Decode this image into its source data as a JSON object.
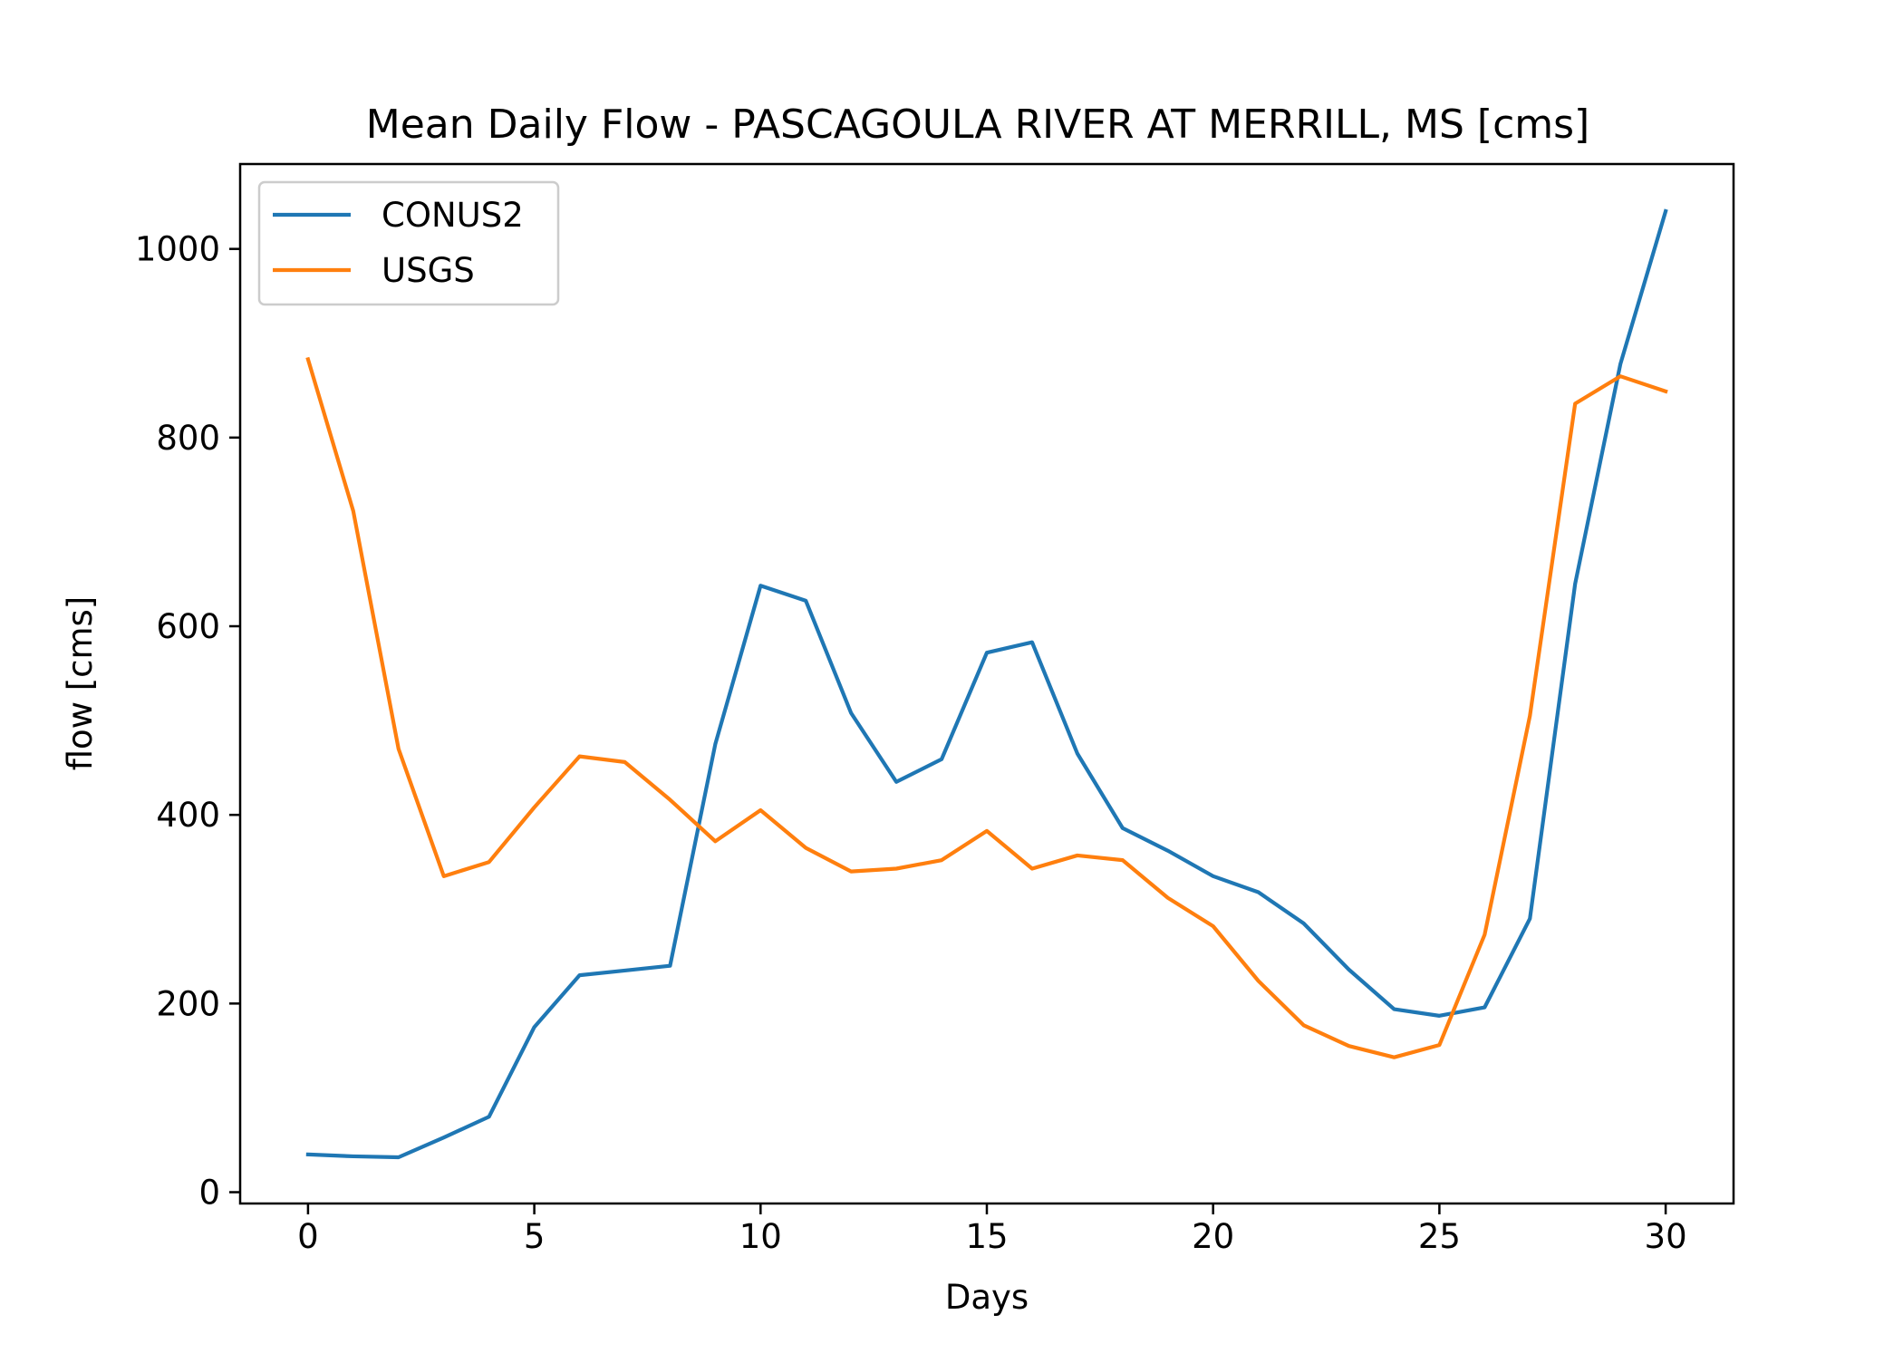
{
  "chart_data": {
    "type": "line",
    "title": "Mean Daily Flow - PASCAGOULA RIVER AT MERRILL, MS [cms]",
    "xlabel": "Days",
    "ylabel": "flow [cms]",
    "xlim": [
      -1.5,
      31.5
    ],
    "ylim": [
      -12,
      1090
    ],
    "xticks": [
      0,
      5,
      10,
      15,
      20,
      25,
      30
    ],
    "yticks": [
      0,
      200,
      400,
      600,
      800,
      1000
    ],
    "grid": false,
    "legend_position": "upper-left",
    "x": [
      0,
      1,
      2,
      3,
      4,
      5,
      6,
      7,
      8,
      9,
      10,
      11,
      12,
      13,
      14,
      15,
      16,
      17,
      18,
      19,
      20,
      21,
      22,
      23,
      24,
      25,
      26,
      27,
      28,
      29,
      30
    ],
    "series": [
      {
        "name": "CONUS2",
        "color": "#1f77b4",
        "values": [
          40,
          38,
          37,
          58,
          80,
          175,
          230,
          235,
          240,
          475,
          643,
          627,
          508,
          435,
          459,
          572,
          583,
          465,
          386,
          362,
          335,
          318,
          285,
          236,
          194,
          187,
          196,
          290,
          645,
          878,
          1040
        ]
      },
      {
        "name": "USGS",
        "color": "#ff7f0e",
        "values": [
          883,
          722,
          470,
          335,
          350,
          408,
          462,
          456,
          416,
          372,
          405,
          365,
          340,
          343,
          352,
          383,
          343,
          357,
          352,
          312,
          282,
          224,
          177,
          155,
          143,
          156,
          273,
          505,
          836,
          865,
          849
        ]
      }
    ]
  }
}
